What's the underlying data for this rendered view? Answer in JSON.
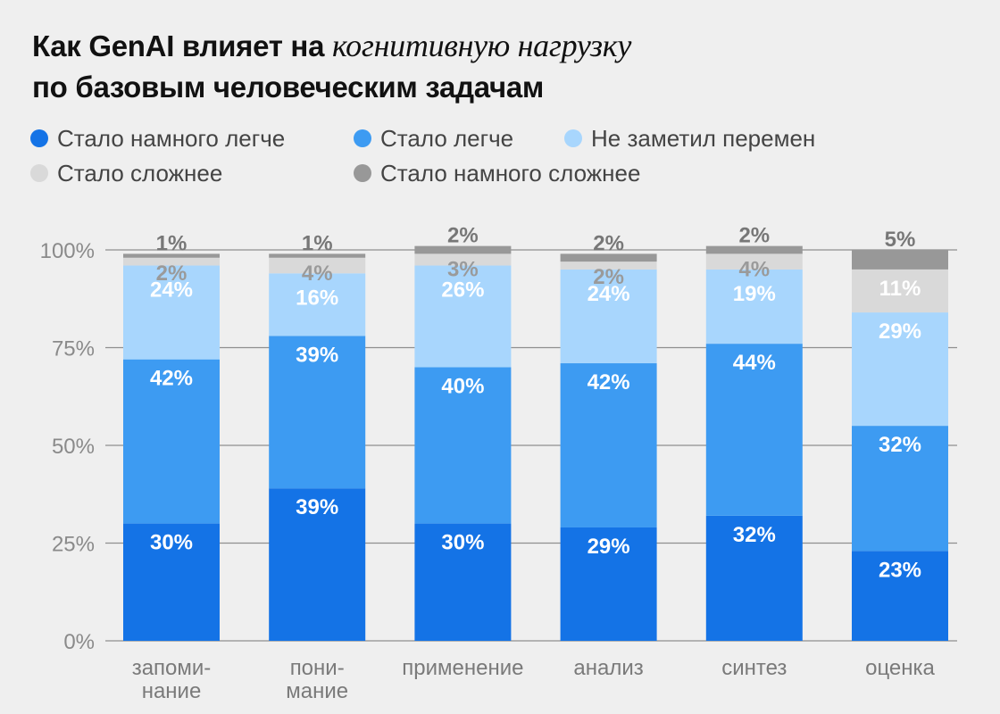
{
  "header": {
    "title_part1": "Как GenAI влияет на ",
    "title_italic": "когнитивную нагрузку",
    "title_line2": "по базовым человеческим задачам"
  },
  "legend": [
    {
      "label": "Стало намного легче",
      "color": "#1473e6"
    },
    {
      "label": "Стало легче",
      "color": "#3d9bf2"
    },
    {
      "label": "Не заметил перемен",
      "color": "#a8d6fd"
    },
    {
      "label": "Стало сложнее",
      "color": "#d9d9d9"
    },
    {
      "label": "Стало намного сложнее",
      "color": "#989898"
    }
  ],
  "chart_data": {
    "type": "bar",
    "stacked": true,
    "categories": [
      "запоми-\nнание",
      "пони-\nмание",
      "применение",
      "анализ",
      "синтез",
      "оценка"
    ],
    "series": [
      {
        "name": "Стало намного легче",
        "values": [
          30,
          39,
          30,
          29,
          32,
          23
        ],
        "labels": [
          "30%",
          "39%",
          "30%",
          "29%",
          "32%",
          "23%"
        ]
      },
      {
        "name": "Стало легче",
        "values": [
          42,
          39,
          40,
          42,
          44,
          32
        ],
        "labels": [
          "42%",
          "39%",
          "40%",
          "42%",
          "44%",
          "32%"
        ]
      },
      {
        "name": "Не заметил перемен",
        "values": [
          24,
          16,
          26,
          24,
          19,
          29
        ],
        "labels": [
          "24%",
          "16%",
          "26%",
          "24%",
          "19%",
          "29%"
        ]
      },
      {
        "name": "Стало сложнее",
        "values": [
          2,
          4,
          3,
          2,
          4,
          11
        ],
        "labels": [
          "2%",
          "4%",
          "3%",
          "2%",
          "4%",
          "11%"
        ]
      },
      {
        "name": "Стало намного сложнее",
        "values": [
          1,
          1,
          2,
          2,
          2,
          5
        ],
        "labels": [
          "1%",
          "1%",
          "2%",
          "2%",
          "2%",
          "5%"
        ]
      }
    ],
    "yticks": [
      "0%",
      "25%",
      "50%",
      "75%",
      "100%"
    ],
    "ylim": [
      0,
      100
    ],
    "gridlines": true,
    "legend_position": "top"
  }
}
